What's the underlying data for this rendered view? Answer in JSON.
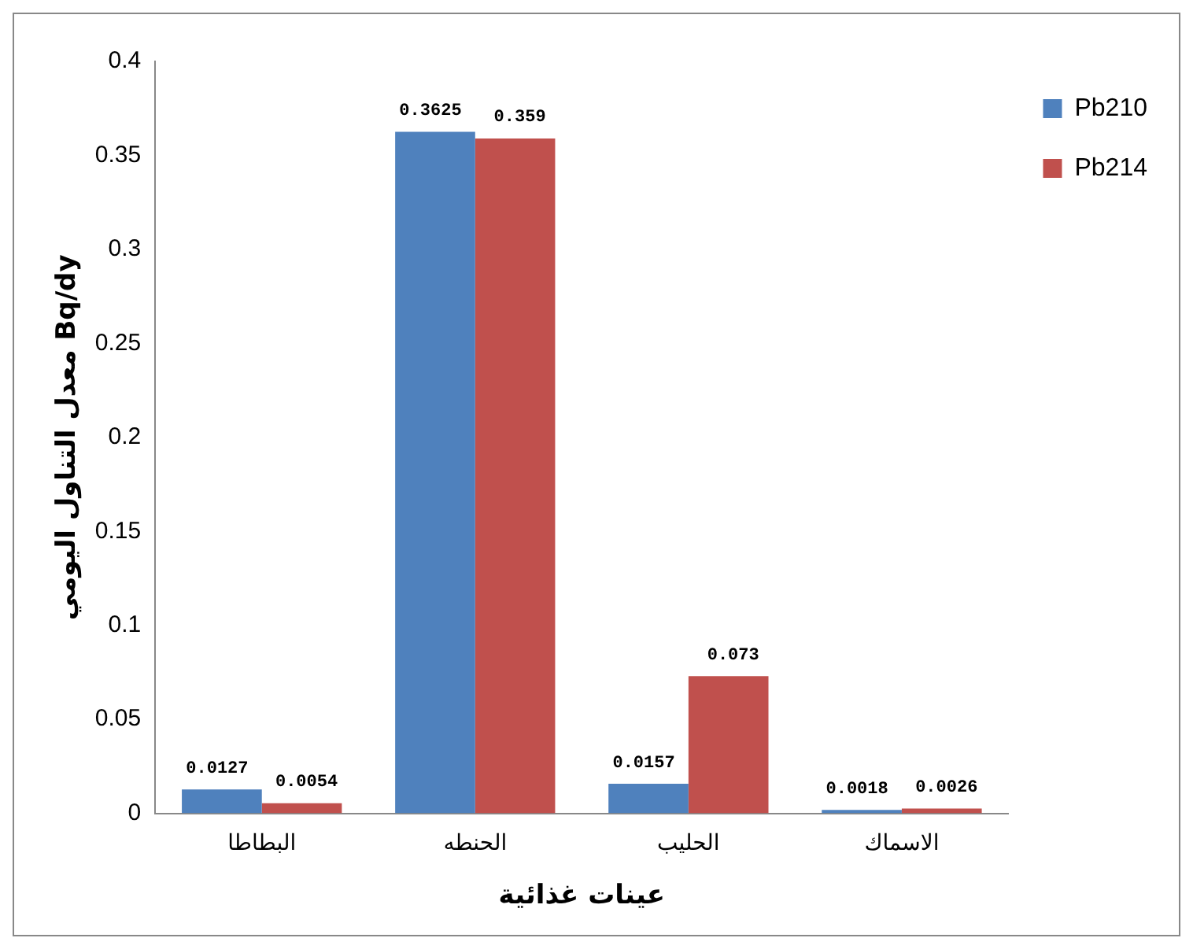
{
  "chart_data": {
    "type": "bar",
    "xlabel": "عينات غذائية",
    "ylabel": "معدل التناول اليومي Bq/dy",
    "categories": [
      "البطاطا",
      "الحنطه",
      "الحليب",
      "الاسماك"
    ],
    "series": [
      {
        "name": "Pb210",
        "color": "#4f81bd",
        "values": [
          0.0127,
          0.3625,
          0.0157,
          0.0018
        ]
      },
      {
        "name": "Pb214",
        "color": "#c0504d",
        "values": [
          0.0054,
          0.359,
          0.073,
          0.0026
        ]
      }
    ],
    "ylim": [
      0,
      0.4
    ],
    "yticks": [
      0,
      0.05,
      0.1,
      0.15,
      0.2,
      0.25,
      0.3,
      0.35,
      0.4
    ],
    "grid": false,
    "legend": "right",
    "data_labels": true
  }
}
